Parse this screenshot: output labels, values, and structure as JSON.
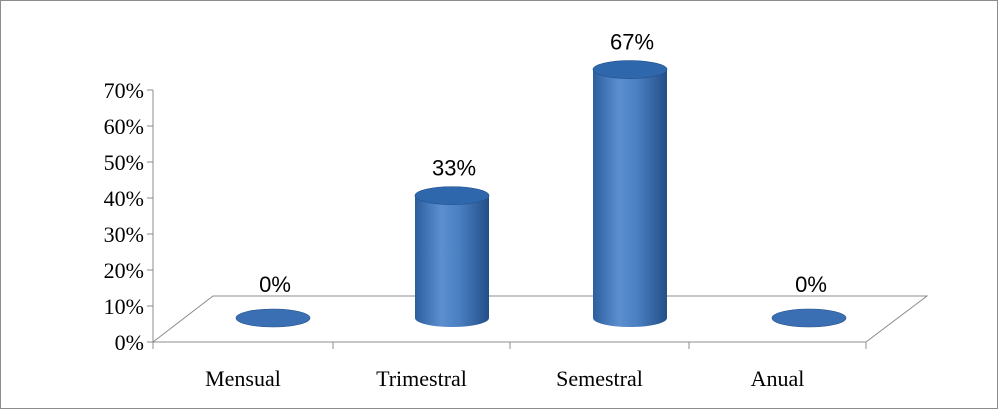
{
  "chart_data": {
    "type": "bar",
    "categories": [
      "Mensual",
      "Trimestral",
      "Semestral",
      "Anual"
    ],
    "values": [
      0,
      33,
      67,
      0
    ],
    "data_labels": [
      "0%",
      "33%",
      "67%",
      "0%"
    ],
    "y_ticks": [
      "0%",
      "10%",
      "20%",
      "30%",
      "40%",
      "50%",
      "60%",
      "70%"
    ],
    "ylim": [
      0,
      70
    ],
    "style": "3d-cylinder",
    "grid": false,
    "legend": "none",
    "bar_color": "#4a7fc1",
    "bar_dark": "#2c5e9e",
    "bar_light": "#7fa8dc"
  }
}
